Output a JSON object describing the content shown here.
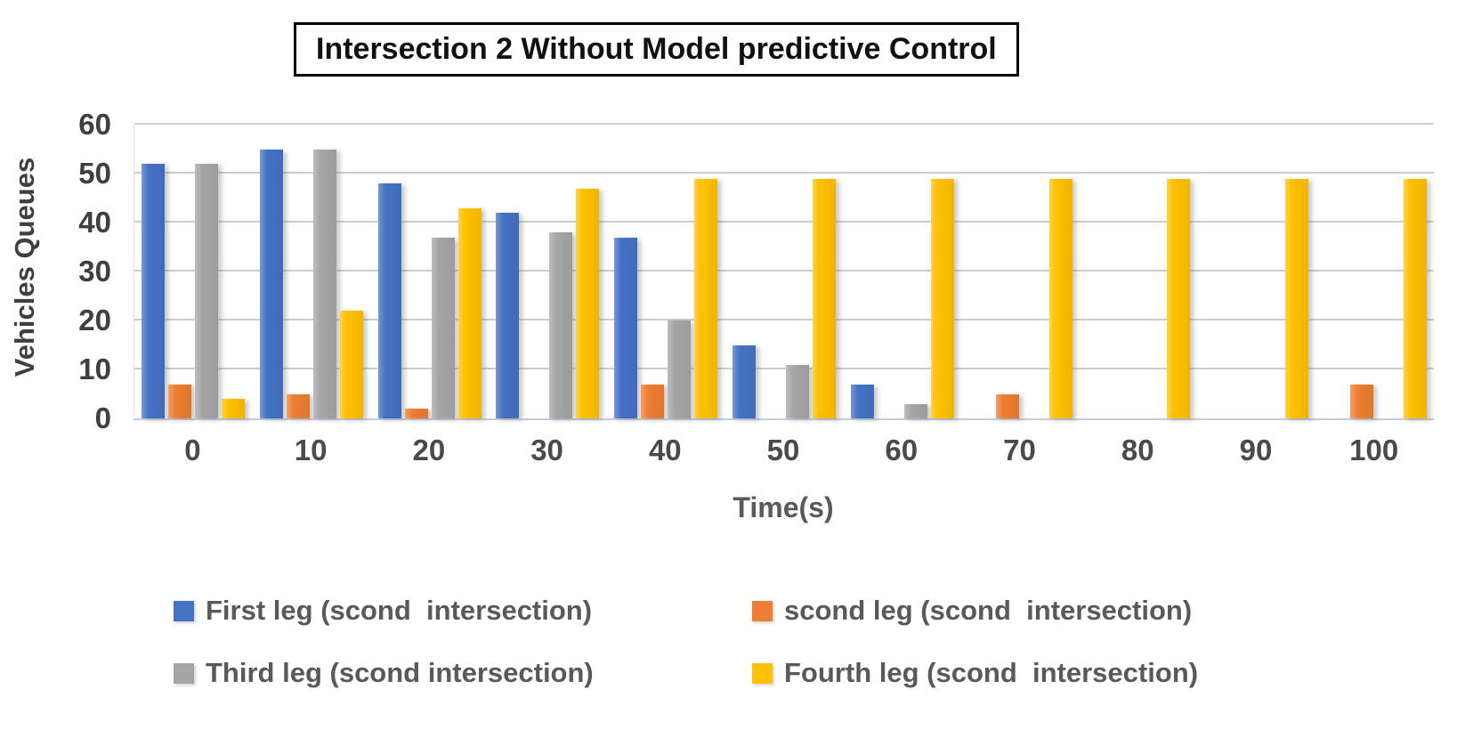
{
  "chart_data": {
    "type": "bar",
    "title": "Intersection 2 Without Model predictive Control",
    "xlabel": "Time(s)",
    "ylabel": "Vehicles Queues",
    "categories": [
      "0",
      "10",
      "20",
      "30",
      "40",
      "50",
      "60",
      "70",
      "80",
      "90",
      "100"
    ],
    "series": [
      {
        "name": "First leg (scond  intersection)",
        "color": "#4472C4",
        "values": [
          52,
          55,
          48,
          42,
          37,
          15,
          7,
          0,
          0,
          0,
          0
        ]
      },
      {
        "name": "scond leg (scond  intersection)",
        "color": "#ED7D31",
        "values": [
          7,
          5,
          2,
          0,
          7,
          0,
          0,
          5,
          0,
          0,
          7
        ]
      },
      {
        "name": "Third leg (scond intersection)",
        "color": "#A5A5A5",
        "values": [
          52,
          55,
          37,
          38,
          20,
          11,
          3,
          0,
          0,
          0,
          0
        ]
      },
      {
        "name": "Fourth leg (scond  intersection)",
        "color": "#FFC000",
        "values": [
          4,
          22,
          43,
          47,
          49,
          49,
          49,
          49,
          49,
          49,
          49
        ]
      }
    ],
    "ylim": [
      0,
      60
    ],
    "yticks": [
      0,
      10,
      20,
      30,
      40,
      50,
      60
    ],
    "grid": true,
    "legend_position": "bottom"
  },
  "colors": {
    "gridline": "#CCCCCC",
    "baseline": "#C3CBE0",
    "axis_text": "#3F3F3F",
    "legend_text": "#595959",
    "title_border": "#000000"
  }
}
